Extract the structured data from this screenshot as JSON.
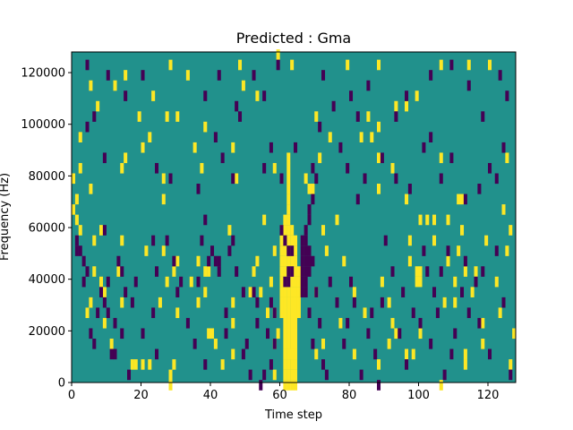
{
  "chart_data": {
    "type": "heatmap",
    "title": "Predicted : Gma",
    "xlabel": "Time step",
    "ylabel": "Frequency (Hz)",
    "xlim": [
      0,
      128
    ],
    "ylim": [
      0,
      128000
    ],
    "x_ticks": [
      "0",
      "20",
      "40",
      "60",
      "80",
      "100",
      "120"
    ],
    "y_ticks": [
      "0",
      "20000",
      "40000",
      "60000",
      "80000",
      "100000",
      "120000"
    ],
    "colormap": "viridis",
    "grid": false,
    "levels": {
      "low": -1,
      "background": 0,
      "high": 1
    },
    "colors": {
      "low": "#440154",
      "background": "#21918c",
      "high": "#fde725"
    },
    "rows": 128,
    "cells_high": [
      [
        61,
        0
      ],
      [
        62,
        0
      ],
      [
        63,
        0
      ],
      [
        64,
        0
      ],
      [
        61,
        4
      ],
      [
        62,
        4
      ],
      [
        63,
        4
      ],
      [
        64,
        4
      ],
      [
        61,
        8
      ],
      [
        62,
        8
      ],
      [
        63,
        8
      ],
      [
        64,
        8
      ],
      [
        61,
        12
      ],
      [
        62,
        12
      ],
      [
        63,
        12
      ],
      [
        64,
        12
      ],
      [
        61,
        16
      ],
      [
        62,
        16
      ],
      [
        63,
        16
      ],
      [
        64,
        16
      ],
      [
        61,
        20
      ],
      [
        62,
        20
      ],
      [
        63,
        20
      ],
      [
        64,
        20
      ],
      [
        61,
        24
      ],
      [
        62,
        24
      ],
      [
        63,
        24
      ],
      [
        64,
        24
      ],
      [
        60,
        28
      ],
      [
        61,
        28
      ],
      [
        62,
        28
      ],
      [
        63,
        28
      ],
      [
        64,
        28
      ],
      [
        65,
        28
      ],
      [
        60,
        32
      ],
      [
        61,
        32
      ],
      [
        62,
        32
      ],
      [
        63,
        32
      ],
      [
        64,
        32
      ],
      [
        65,
        32
      ],
      [
        60,
        36
      ],
      [
        61,
        36
      ],
      [
        62,
        36
      ],
      [
        63,
        36
      ],
      [
        64,
        36
      ],
      [
        65,
        36
      ],
      [
        60,
        40
      ],
      [
        61,
        40
      ],
      [
        62,
        40
      ],
      [
        63,
        40
      ],
      [
        64,
        40
      ],
      [
        65,
        40
      ],
      [
        60,
        44
      ],
      [
        61,
        44
      ],
      [
        62,
        44
      ],
      [
        63,
        44
      ],
      [
        64,
        44
      ],
      [
        65,
        44
      ],
      [
        60,
        48
      ],
      [
        61,
        48
      ],
      [
        62,
        48
      ],
      [
        63,
        48
      ],
      [
        64,
        48
      ],
      [
        60,
        52
      ],
      [
        61,
        52
      ],
      [
        62,
        52
      ],
      [
        63,
        52
      ],
      [
        64,
        52
      ],
      [
        60,
        56
      ],
      [
        61,
        56
      ],
      [
        62,
        56
      ],
      [
        63,
        56
      ],
      [
        64,
        56
      ],
      [
        60,
        60
      ],
      [
        61,
        60
      ],
      [
        62,
        60
      ],
      [
        63,
        60
      ],
      [
        61,
        64
      ],
      [
        62,
        64
      ],
      [
        62,
        68
      ],
      [
        62,
        72
      ],
      [
        62,
        76
      ],
      [
        62,
        80
      ],
      [
        62,
        84
      ],
      [
        62,
        88
      ],
      [
        28,
        0
      ],
      [
        28,
        4
      ],
      [
        17,
        8
      ],
      [
        18,
        8
      ],
      [
        20,
        8
      ],
      [
        22,
        8
      ],
      [
        29,
        8
      ],
      [
        43,
        8
      ],
      [
        88,
        8
      ],
      [
        113,
        8
      ],
      [
        126,
        8
      ],
      [
        58,
        4
      ],
      [
        63,
        12
      ],
      [
        46,
        12
      ],
      [
        70,
        12
      ],
      [
        81,
        12
      ],
      [
        96,
        12
      ],
      [
        113,
        12
      ],
      [
        41,
        16
      ],
      [
        58,
        16
      ],
      [
        72,
        16
      ],
      [
        91,
        16
      ],
      [
        39,
        20
      ],
      [
        40,
        20
      ],
      [
        59,
        20
      ],
      [
        100,
        20
      ],
      [
        9,
        24
      ],
      [
        46,
        24
      ],
      [
        77,
        24
      ],
      [
        92,
        24
      ],
      [
        118,
        24
      ],
      [
        4,
        28
      ],
      [
        30,
        28
      ],
      [
        56,
        28
      ],
      [
        58,
        28
      ],
      [
        5,
        32
      ],
      [
        14,
        32
      ],
      [
        25,
        32
      ],
      [
        36,
        32
      ],
      [
        46,
        32
      ],
      [
        76,
        32
      ],
      [
        91,
        32
      ],
      [
        107,
        32
      ],
      [
        110,
        32
      ],
      [
        38,
        36
      ],
      [
        51,
        36
      ],
      [
        54,
        36
      ],
      [
        70,
        36
      ],
      [
        8,
        40
      ],
      [
        27,
        40
      ],
      [
        34,
        40
      ],
      [
        57,
        40
      ],
      [
        89,
        40
      ],
      [
        99,
        40
      ],
      [
        100,
        40
      ],
      [
        122,
        40
      ],
      [
        6,
        44
      ],
      [
        13,
        44
      ],
      [
        29,
        44
      ],
      [
        38,
        44
      ],
      [
        39,
        44
      ],
      [
        52,
        44
      ],
      [
        99,
        44
      ],
      [
        100,
        44
      ],
      [
        113,
        44
      ],
      [
        116,
        44
      ],
      [
        30,
        48
      ],
      [
        53,
        48
      ],
      [
        97,
        48
      ],
      [
        21,
        52
      ],
      [
        26,
        52
      ],
      [
        58,
        52
      ],
      [
        73,
        52
      ],
      [
        111,
        52
      ],
      [
        125,
        52
      ],
      [
        6,
        56
      ],
      [
        14,
        56
      ],
      [
        97,
        56
      ],
      [
        119,
        56
      ],
      [
        8,
        60
      ],
      [
        72,
        60
      ],
      [
        112,
        60
      ],
      [
        126,
        60
      ],
      [
        55,
        64
      ],
      [
        76,
        64
      ],
      [
        102,
        64
      ],
      [
        104,
        64
      ],
      [
        108,
        64
      ],
      [
        1,
        72
      ],
      [
        26,
        72
      ],
      [
        111,
        72
      ],
      [
        112,
        72
      ],
      [
        68,
        76
      ],
      [
        69,
        76
      ],
      [
        88,
        76
      ],
      [
        0,
        80
      ],
      [
        26,
        80
      ],
      [
        67,
        80
      ],
      [
        2,
        84
      ],
      [
        14,
        84
      ],
      [
        37,
        84
      ],
      [
        58,
        84
      ],
      [
        92,
        84
      ],
      [
        71,
        88
      ],
      [
        106,
        88
      ],
      [
        125,
        88
      ],
      [
        35,
        92
      ],
      [
        2,
        96
      ],
      [
        22,
        96
      ],
      [
        83,
        96
      ],
      [
        86,
        96
      ],
      [
        88,
        100
      ],
      [
        19,
        104
      ],
      [
        27,
        104
      ],
      [
        30,
        104
      ],
      [
        85,
        104
      ],
      [
        7,
        108
      ],
      [
        93,
        108
      ],
      [
        96,
        108
      ],
      [
        23,
        112
      ],
      [
        99,
        112
      ],
      [
        15,
        120
      ],
      [
        12,
        116
      ],
      [
        5,
        116
      ],
      [
        49,
        116
      ],
      [
        28,
        124
      ],
      [
        48,
        124
      ],
      [
        79,
        124
      ],
      [
        88,
        124
      ],
      [
        106,
        124
      ],
      [
        114,
        124
      ],
      [
        120,
        124
      ],
      [
        63,
        124
      ],
      [
        59,
        128
      ],
      [
        0,
        68
      ],
      [
        1,
        64
      ],
      [
        2,
        60
      ],
      [
        5,
        76
      ],
      [
        9,
        36
      ],
      [
        15,
        88
      ],
      [
        20,
        92
      ],
      [
        11,
        16
      ],
      [
        36,
        48
      ],
      [
        45,
        60
      ],
      [
        78,
        48
      ],
      [
        81,
        36
      ],
      [
        84,
        28
      ],
      [
        93,
        20
      ],
      [
        98,
        12
      ],
      [
        106,
        0
      ],
      [
        115,
        36
      ],
      [
        118,
        16
      ],
      [
        33,
        120
      ],
      [
        38,
        100
      ],
      [
        46,
        92
      ],
      [
        47,
        80
      ],
      [
        53,
        112
      ],
      [
        70,
        104
      ],
      [
        74,
        96
      ],
      [
        88,
        88
      ],
      [
        96,
        72
      ],
      [
        100,
        64
      ],
      [
        104,
        56
      ],
      [
        108,
        48
      ],
      [
        110,
        40
      ],
      [
        123,
        28
      ],
      [
        124,
        68
      ],
      [
        127,
        20
      ]
    ],
    "cells_low": [
      [
        61,
        40
      ],
      [
        62,
        40
      ],
      [
        66,
        40
      ],
      [
        67,
        40
      ],
      [
        66,
        44
      ],
      [
        67,
        44
      ],
      [
        68,
        44
      ],
      [
        66,
        48
      ],
      [
        67,
        48
      ],
      [
        68,
        48
      ],
      [
        69,
        48
      ],
      [
        66,
        52
      ],
      [
        67,
        52
      ],
      [
        68,
        52
      ],
      [
        66,
        56
      ],
      [
        67,
        56
      ],
      [
        66,
        36
      ],
      [
        67,
        36
      ],
      [
        67,
        60
      ],
      [
        68,
        64
      ],
      [
        68,
        68
      ],
      [
        69,
        72
      ],
      [
        70,
        80
      ],
      [
        69,
        84
      ],
      [
        62,
        52
      ],
      [
        63,
        52
      ],
      [
        61,
        56
      ],
      [
        62,
        44
      ],
      [
        63,
        44
      ],
      [
        1,
        52
      ],
      [
        2,
        52
      ],
      [
        1,
        56
      ],
      [
        3,
        48
      ],
      [
        4,
        44
      ],
      [
        8,
        36
      ],
      [
        9,
        32
      ],
      [
        10,
        40
      ],
      [
        10,
        28
      ],
      [
        12,
        24
      ],
      [
        13,
        48
      ],
      [
        14,
        44
      ],
      [
        15,
        36
      ],
      [
        16,
        4
      ],
      [
        12,
        12
      ],
      [
        17,
        32
      ],
      [
        18,
        40
      ],
      [
        20,
        20
      ],
      [
        23,
        56
      ],
      [
        23,
        28
      ],
      [
        24,
        44
      ],
      [
        24,
        12
      ],
      [
        27,
        56
      ],
      [
        29,
        48
      ],
      [
        30,
        36
      ],
      [
        31,
        40
      ],
      [
        33,
        24
      ],
      [
        35,
        16
      ],
      [
        36,
        40
      ],
      [
        37,
        56
      ],
      [
        38,
        8
      ],
      [
        38,
        64
      ],
      [
        39,
        48
      ],
      [
        40,
        52
      ],
      [
        41,
        48
      ],
      [
        42,
        48
      ],
      [
        42,
        44
      ],
      [
        44,
        28
      ],
      [
        44,
        20
      ],
      [
        45,
        52
      ],
      [
        46,
        56
      ],
      [
        46,
        80
      ],
      [
        47,
        44
      ],
      [
        49,
        36
      ],
      [
        49,
        12
      ],
      [
        50,
        16
      ],
      [
        51,
        4
      ],
      [
        52,
        36
      ],
      [
        53,
        32
      ],
      [
        53,
        24
      ],
      [
        54,
        0
      ],
      [
        55,
        4
      ],
      [
        56,
        20
      ],
      [
        57,
        32
      ],
      [
        57,
        8
      ],
      [
        58,
        16
      ],
      [
        58,
        28
      ],
      [
        60,
        60
      ],
      [
        68,
        28
      ],
      [
        69,
        16
      ],
      [
        70,
        36
      ],
      [
        71,
        24
      ],
      [
        72,
        8
      ],
      [
        73,
        4
      ],
      [
        74,
        40
      ],
      [
        76,
        32
      ],
      [
        78,
        16
      ],
      [
        79,
        24
      ],
      [
        80,
        40
      ],
      [
        81,
        32
      ],
      [
        83,
        4
      ],
      [
        85,
        20
      ],
      [
        86,
        28
      ],
      [
        87,
        12
      ],
      [
        88,
        0
      ],
      [
        89,
        32
      ],
      [
        90,
        56
      ],
      [
        92,
        44
      ],
      [
        94,
        20
      ],
      [
        95,
        36
      ],
      [
        96,
        8
      ],
      [
        98,
        28
      ],
      [
        100,
        24
      ],
      [
        101,
        52
      ],
      [
        102,
        44
      ],
      [
        103,
        16
      ],
      [
        104,
        36
      ],
      [
        105,
        28
      ],
      [
        106,
        44
      ],
      [
        107,
        4
      ],
      [
        108,
        52
      ],
      [
        109,
        12
      ],
      [
        110,
        20
      ],
      [
        112,
        36
      ],
      [
        113,
        48
      ],
      [
        114,
        28
      ],
      [
        116,
        40
      ],
      [
        117,
        24
      ],
      [
        118,
        44
      ],
      [
        120,
        12
      ],
      [
        122,
        52
      ],
      [
        124,
        32
      ],
      [
        126,
        4
      ],
      [
        3,
        40
      ],
      [
        5,
        20
      ],
      [
        6,
        16
      ],
      [
        7,
        28
      ],
      [
        9,
        60
      ],
      [
        11,
        12
      ],
      [
        14,
        20
      ],
      [
        10,
        120
      ],
      [
        15,
        112
      ],
      [
        20,
        120
      ],
      [
        38,
        112
      ],
      [
        42,
        120
      ],
      [
        47,
        108
      ],
      [
        52,
        120
      ],
      [
        55,
        112
      ],
      [
        59,
        124
      ],
      [
        72,
        120
      ],
      [
        75,
        108
      ],
      [
        80,
        112
      ],
      [
        82,
        104
      ],
      [
        85,
        116
      ],
      [
        93,
        104
      ],
      [
        96,
        112
      ],
      [
        103,
        120
      ],
      [
        109,
        124
      ],
      [
        4,
        124
      ],
      [
        4,
        100
      ],
      [
        6,
        104
      ],
      [
        9,
        88
      ],
      [
        24,
        84
      ],
      [
        28,
        80
      ],
      [
        36,
        76
      ],
      [
        41,
        96
      ],
      [
        43,
        88
      ],
      [
        48,
        104
      ],
      [
        55,
        84
      ],
      [
        57,
        92
      ],
      [
        60,
        80
      ],
      [
        64,
        92
      ],
      [
        71,
        100
      ],
      [
        77,
        92
      ],
      [
        79,
        84
      ],
      [
        82,
        72
      ],
      [
        84,
        80
      ],
      [
        89,
        88
      ],
      [
        93,
        80
      ],
      [
        97,
        76
      ],
      [
        101,
        92
      ],
      [
        103,
        96
      ],
      [
        106,
        80
      ],
      [
        109,
        88
      ],
      [
        113,
        72
      ],
      [
        117,
        76
      ],
      [
        120,
        84
      ],
      [
        122,
        80
      ],
      [
        124,
        92
      ],
      [
        114,
        116
      ],
      [
        118,
        104
      ],
      [
        123,
        120
      ],
      [
        125,
        112
      ]
    ]
  }
}
